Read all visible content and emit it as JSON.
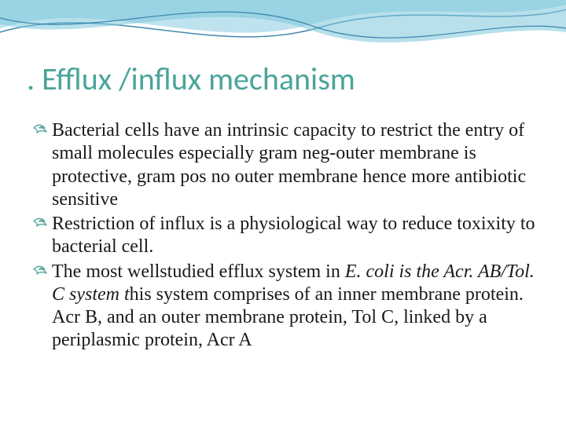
{
  "title": {
    "text": ". Efflux /influx mechanism",
    "color": "#4aa59a",
    "fontsize": 40
  },
  "bullets": [
    {
      "runs": [
        {
          "text": "Bacterial cells have an intrinsic capacity to restrict the entry of small molecules especially  gram neg-outer membrane is protective, gram pos no outer membrane hence more antibiotic sensitive",
          "italic": false
        }
      ]
    },
    {
      "runs": [
        {
          "text": "Restriction of influx is a physiological way to reduce toxixity to bacterial cell.",
          "italic": false
        }
      ]
    },
    {
      "runs": [
        {
          "text": "The most wellstudied efflux system in ",
          "italic": false
        },
        {
          "text": "E. coli is the Acr. AB/Tol. C system t",
          "italic": true
        },
        {
          "text": "his system comprises of an inner membrane protein. Acr B, and an outer membrane protein, Tol C, linked by a periplasmic protein, Acr A",
          "italic": false
        }
      ]
    }
  ],
  "style": {
    "body_fontsize": 24,
    "body_color": "#1a1a1a",
    "bullet_icon_color": "#5aa9a0",
    "wave_colors": {
      "outer_line": "#2f7aa8",
      "fill_light": "#bfe3ee",
      "fill_dark": "#5fb6d0",
      "inner_line": "#2f7aa8"
    },
    "background": "#ffffff"
  }
}
